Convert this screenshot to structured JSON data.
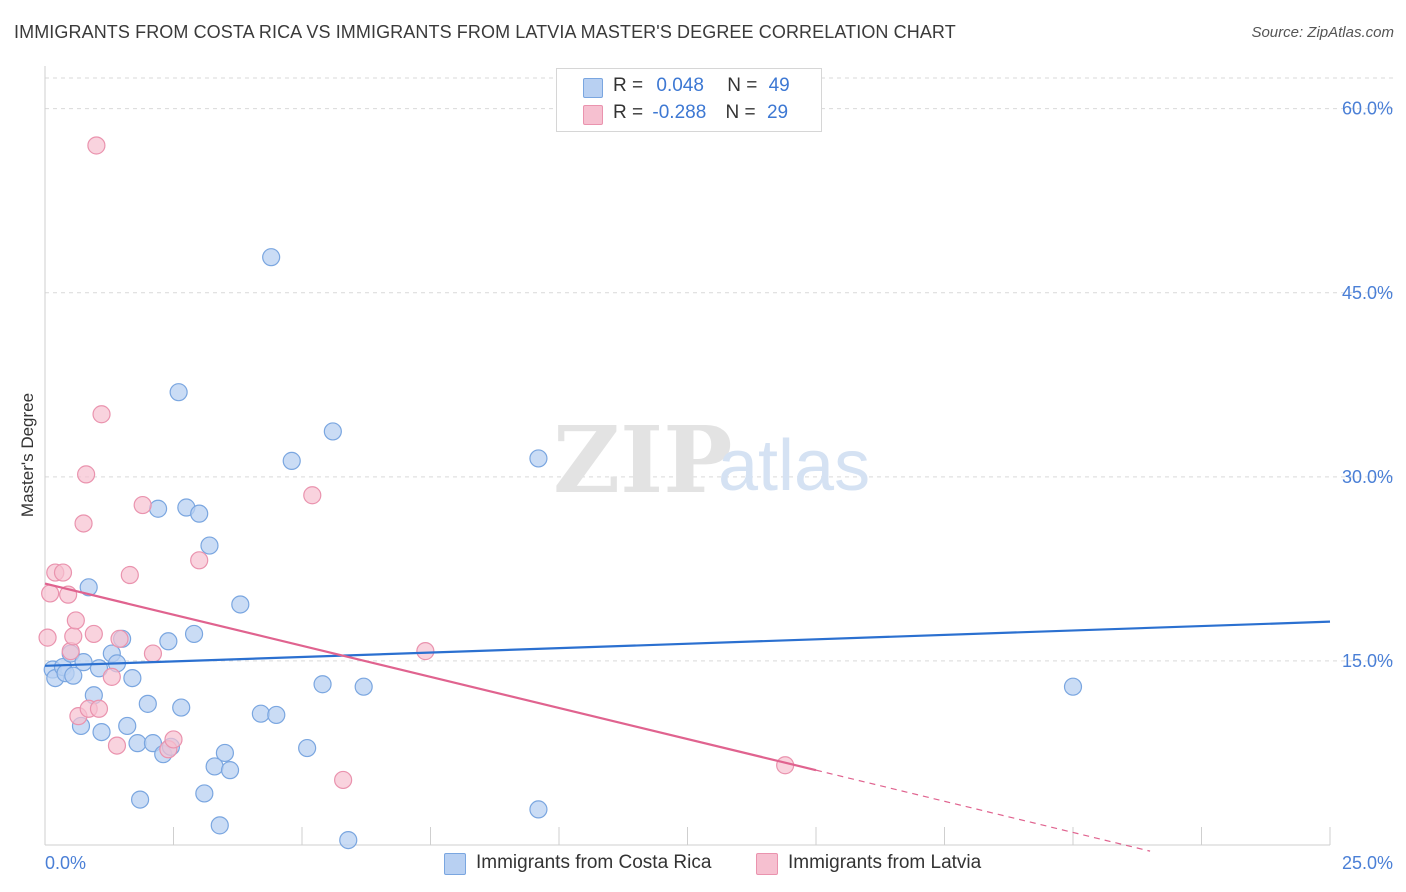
{
  "header": {
    "title": "IMMIGRANTS FROM COSTA RICA VS IMMIGRANTS FROM LATVIA MASTER'S DEGREE CORRELATION CHART",
    "source": "Source: ZipAtlas.com"
  },
  "legend": {
    "series1": {
      "r_label": "R =",
      "r_value": "0.048",
      "n_label": "N =",
      "n_value": "49"
    },
    "series2": {
      "r_label": "R =",
      "r_value": "-0.288",
      "n_label": "N =",
      "n_value": "29"
    }
  },
  "bottom_legend": {
    "series1": "Immigrants from Costa Rica",
    "series2": "Immigrants from Latvia"
  },
  "watermark": {
    "zip": "ZIP",
    "atlas": "atlas"
  },
  "colors": {
    "blue_fill": "#b8d0f2",
    "blue_stroke": "#7aa6e0",
    "blue_line": "#2b70d0",
    "pink_fill": "#f6c0d0",
    "pink_stroke": "#ea93ae",
    "pink_line": "#e0638f",
    "axis_text": "#4a7fd6",
    "grid": "#d9d9d9"
  },
  "chart_data": {
    "type": "scatter",
    "title": "IMMIGRANTS FROM COSTA RICA VS IMMIGRANTS FROM LATVIA MASTER'S DEGREE CORRELATION CHART",
    "xlabel": "",
    "ylabel": "Master's Degree",
    "xlim": [
      0,
      25
    ],
    "ylim": [
      0,
      62.5
    ],
    "x_tick_labels": [
      "0.0%",
      "25.0%"
    ],
    "y_ticks": [
      15,
      30,
      45,
      60
    ],
    "y_tick_labels": [
      "15.0%",
      "30.0%",
      "45.0%",
      "60.0%"
    ],
    "grid": true,
    "series": [
      {
        "name": "Immigrants from Costa Rica",
        "r": 0.048,
        "n": 49,
        "trend": {
          "x": [
            0,
            25
          ],
          "y": [
            14.6,
            18.2
          ]
        },
        "points": [
          [
            0.15,
            14.3
          ],
          [
            0.2,
            13.6
          ],
          [
            0.35,
            14.5
          ],
          [
            0.4,
            14.0
          ],
          [
            0.5,
            15.6
          ],
          [
            0.55,
            13.8
          ],
          [
            0.75,
            14.9
          ],
          [
            0.85,
            21.0
          ],
          [
            0.95,
            12.2
          ],
          [
            1.05,
            14.4
          ],
          [
            1.1,
            9.2
          ],
          [
            0.7,
            9.7
          ],
          [
            1.3,
            15.6
          ],
          [
            1.4,
            14.8
          ],
          [
            1.5,
            16.8
          ],
          [
            1.6,
            9.7
          ],
          [
            1.7,
            13.6
          ],
          [
            1.8,
            8.3
          ],
          [
            1.85,
            3.7
          ],
          [
            2.0,
            11.5
          ],
          [
            2.1,
            8.3
          ],
          [
            2.2,
            27.4
          ],
          [
            2.3,
            7.4
          ],
          [
            2.4,
            16.6
          ],
          [
            2.45,
            8.0
          ],
          [
            2.6,
            36.9
          ],
          [
            2.65,
            11.2
          ],
          [
            2.75,
            27.5
          ],
          [
            2.9,
            17.2
          ],
          [
            3.0,
            27.0
          ],
          [
            3.1,
            4.2
          ],
          [
            3.2,
            24.4
          ],
          [
            3.3,
            6.4
          ],
          [
            3.4,
            1.6
          ],
          [
            3.5,
            7.5
          ],
          [
            3.6,
            6.1
          ],
          [
            3.8,
            19.6
          ],
          [
            4.2,
            10.7
          ],
          [
            4.4,
            47.9
          ],
          [
            4.5,
            10.6
          ],
          [
            4.8,
            31.3
          ],
          [
            5.1,
            7.9
          ],
          [
            5.4,
            13.1
          ],
          [
            5.6,
            33.7
          ],
          [
            5.9,
            0.4
          ],
          [
            6.2,
            12.9
          ],
          [
            9.6,
            31.5
          ],
          [
            9.6,
            2.9
          ],
          [
            20.0,
            12.9
          ]
        ]
      },
      {
        "name": "Immigrants from Latvia",
        "r": -0.288,
        "n": 29,
        "trend": {
          "x": [
            0,
            15
          ],
          "y": [
            21.3,
            6.1
          ]
        },
        "trend_dashed": {
          "x": [
            15,
            21.5
          ],
          "y": [
            6.1,
            -0.5
          ]
        },
        "points": [
          [
            0.05,
            16.9
          ],
          [
            0.1,
            20.5
          ],
          [
            0.2,
            22.2
          ],
          [
            0.35,
            22.2
          ],
          [
            0.45,
            20.4
          ],
          [
            0.5,
            15.8
          ],
          [
            0.55,
            17.0
          ],
          [
            0.6,
            18.3
          ],
          [
            0.65,
            10.5
          ],
          [
            0.75,
            26.2
          ],
          [
            0.8,
            30.2
          ],
          [
            0.85,
            11.1
          ],
          [
            0.95,
            17.2
          ],
          [
            1.0,
            57.0
          ],
          [
            1.05,
            11.1
          ],
          [
            1.1,
            35.1
          ],
          [
            1.3,
            13.7
          ],
          [
            1.4,
            8.1
          ],
          [
            1.45,
            16.8
          ],
          [
            1.65,
            22.0
          ],
          [
            1.9,
            27.7
          ],
          [
            2.1,
            15.6
          ],
          [
            2.4,
            7.8
          ],
          [
            2.5,
            8.6
          ],
          [
            3.0,
            23.2
          ],
          [
            5.2,
            28.5
          ],
          [
            5.8,
            5.3
          ],
          [
            7.4,
            15.8
          ],
          [
            14.4,
            6.5
          ]
        ]
      }
    ]
  }
}
